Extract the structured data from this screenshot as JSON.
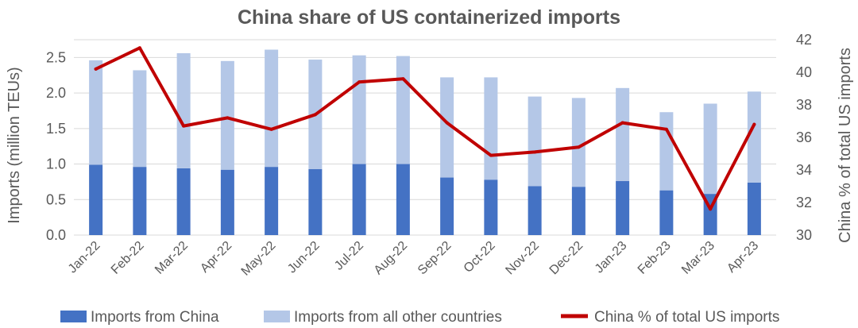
{
  "chart_data": {
    "type": "bar",
    "stacked": true,
    "title": "China share of US containerized imports",
    "categories": [
      "Jan-22",
      "Feb-22",
      "Mar-22",
      "Apr-22",
      "May-22",
      "Jun-22",
      "Jul-22",
      "Aug-22",
      "Sep-22",
      "Oct-22",
      "Nov-22",
      "Dec-22",
      "Jan-23",
      "Feb-23",
      "Mar-23",
      "Apr-23"
    ],
    "ylabel": "Imports (million TEUs)",
    "ylim": [
      0,
      2.75
    ],
    "yticks": [
      0.0,
      0.5,
      1.0,
      1.5,
      2.0,
      2.5
    ],
    "ytick_labels": [
      "0.0",
      "0.5",
      "1.0",
      "1.5",
      "2.0",
      "2.5"
    ],
    "y2label": "China % of total US imports",
    "y2lim": [
      30,
      42
    ],
    "y2ticks": [
      30,
      32,
      34,
      36,
      38,
      40,
      42
    ],
    "y2tick_labels": [
      "30",
      "32",
      "34",
      "36",
      "38",
      "40",
      "42"
    ],
    "grid": true,
    "legend_position": "bottom",
    "series": [
      {
        "name": "Imports from China",
        "kind": "bar",
        "axis": "left",
        "color": "#4472c4",
        "values": [
          0.99,
          0.96,
          0.94,
          0.92,
          0.96,
          0.93,
          1.0,
          1.0,
          0.81,
          0.78,
          0.69,
          0.68,
          0.76,
          0.63,
          0.58,
          0.74
        ]
      },
      {
        "name": "Imports from all other countries",
        "kind": "bar",
        "axis": "left",
        "color": "#b4c7e7",
        "values": [
          1.47,
          1.36,
          1.62,
          1.53,
          1.65,
          1.54,
          1.53,
          1.52,
          1.41,
          1.44,
          1.26,
          1.25,
          1.31,
          1.1,
          1.27,
          1.28
        ]
      },
      {
        "name": "China % of total US imports",
        "kind": "line",
        "axis": "right",
        "color": "#c00000",
        "values": [
          40.2,
          41.5,
          36.7,
          37.2,
          36.5,
          37.4,
          39.4,
          39.6,
          36.9,
          34.9,
          35.1,
          35.4,
          36.9,
          36.5,
          31.6,
          36.8
        ]
      }
    ]
  }
}
